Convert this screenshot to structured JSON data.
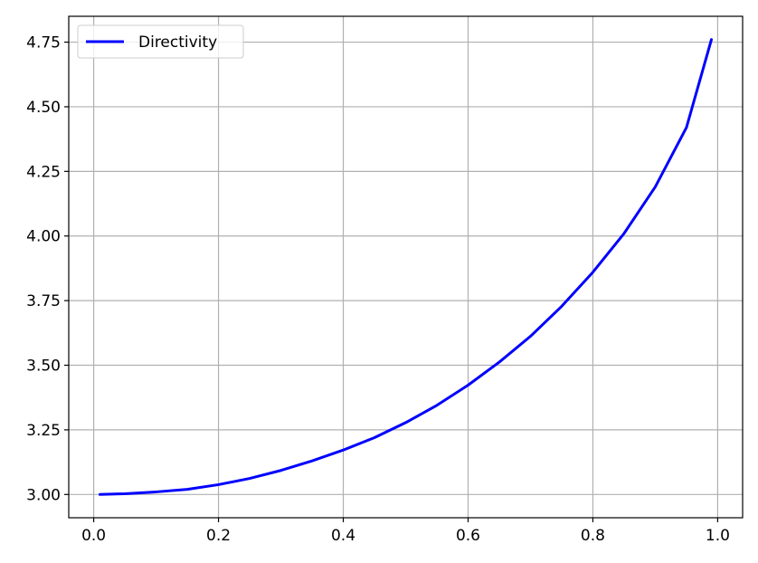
{
  "chart_data": {
    "type": "line",
    "title": "",
    "xlabel": "",
    "ylabel": "",
    "xlim": [
      -0.04,
      1.04
    ],
    "ylim": [
      2.91,
      4.85
    ],
    "xticks": [
      0.0,
      0.2,
      0.4,
      0.6,
      0.8,
      1.0
    ],
    "xtick_labels": [
      "0.0",
      "0.2",
      "0.4",
      "0.6",
      "0.8",
      "1.0"
    ],
    "yticks": [
      3.0,
      3.25,
      3.5,
      3.75,
      4.0,
      4.25,
      4.5,
      4.75
    ],
    "ytick_labels": [
      "3.00",
      "3.25",
      "3.50",
      "3.75",
      "4.00",
      "4.25",
      "4.50",
      "4.75"
    ],
    "grid": true,
    "legend_position": "top-left",
    "series": [
      {
        "name": "Directivity",
        "color": "#0000ff",
        "x": [
          0.01,
          0.05,
          0.1,
          0.15,
          0.2,
          0.25,
          0.3,
          0.35,
          0.4,
          0.45,
          0.5,
          0.55,
          0.6,
          0.65,
          0.7,
          0.75,
          0.8,
          0.85,
          0.9,
          0.95,
          0.99
        ],
        "y": [
          3.0,
          3.003,
          3.01,
          3.02,
          3.038,
          3.062,
          3.093,
          3.13,
          3.172,
          3.22,
          3.278,
          3.345,
          3.423,
          3.512,
          3.612,
          3.728,
          3.86,
          4.01,
          4.19,
          4.42,
          4.76
        ]
      }
    ]
  }
}
